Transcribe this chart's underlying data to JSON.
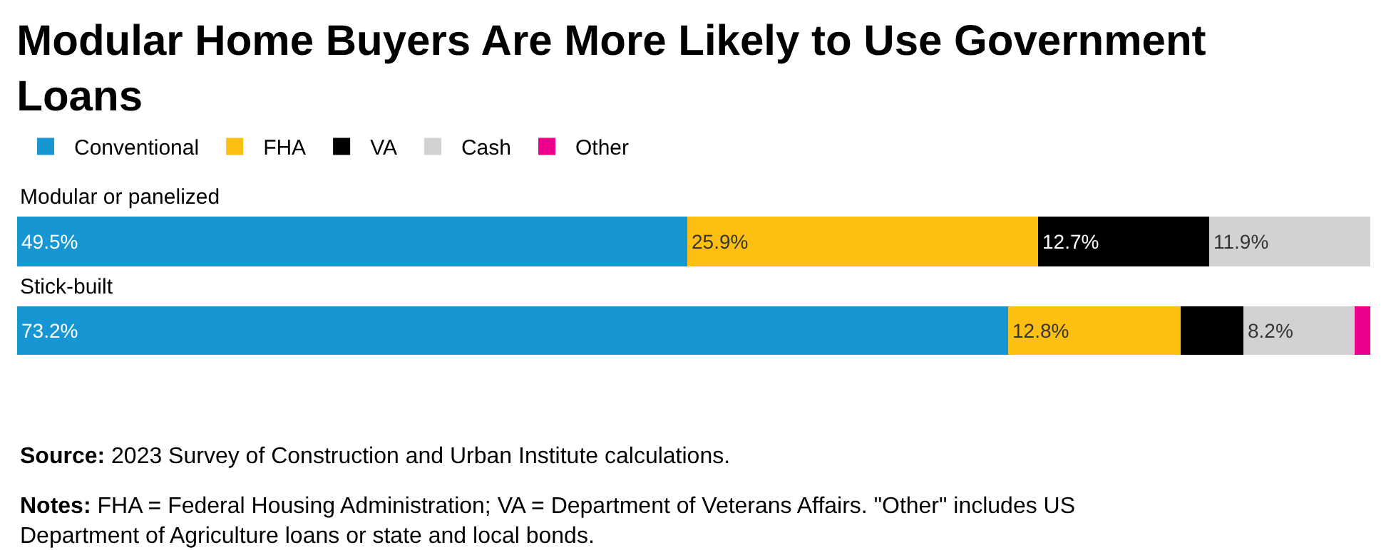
{
  "chart_data": {
    "type": "bar",
    "orientation": "horizontal",
    "stacked": true,
    "title": "Modular Home Buyers Are More Likely to Use Government Loans",
    "categories": [
      "Modular or panelized",
      "Stick-built"
    ],
    "series": [
      {
        "name": "Conventional",
        "color": "#1696d2",
        "values": [
          49.5,
          73.2
        ],
        "value_labels": [
          "49.5%",
          "73.2%"
        ]
      },
      {
        "name": "FHA",
        "color": "#fdbf11",
        "values": [
          25.9,
          12.8
        ],
        "value_labels": [
          "25.9%",
          "12.8%"
        ]
      },
      {
        "name": "VA",
        "color": "#000000",
        "values": [
          12.7,
          4.6
        ],
        "value_labels": [
          "12.7%",
          null
        ]
      },
      {
        "name": "Cash",
        "color": "#d2d2d2",
        "values": [
          11.9,
          8.2
        ],
        "value_labels": [
          "11.9%",
          "8.2%"
        ]
      },
      {
        "name": "Other",
        "color": "#ec008b",
        "values": [
          0,
          1.2
        ],
        "value_labels": [
          null,
          null
        ]
      }
    ],
    "legend": "top left",
    "annotations": [
      "Source: 2023 Survey of Construction and Urban Institute calculations.",
      "Notes: FHA = Federal Housing Administration; VA = Department of Veterans Affairs. \"Other\" includes US Department of Agriculture loans or state and local bonds."
    ]
  }
}
